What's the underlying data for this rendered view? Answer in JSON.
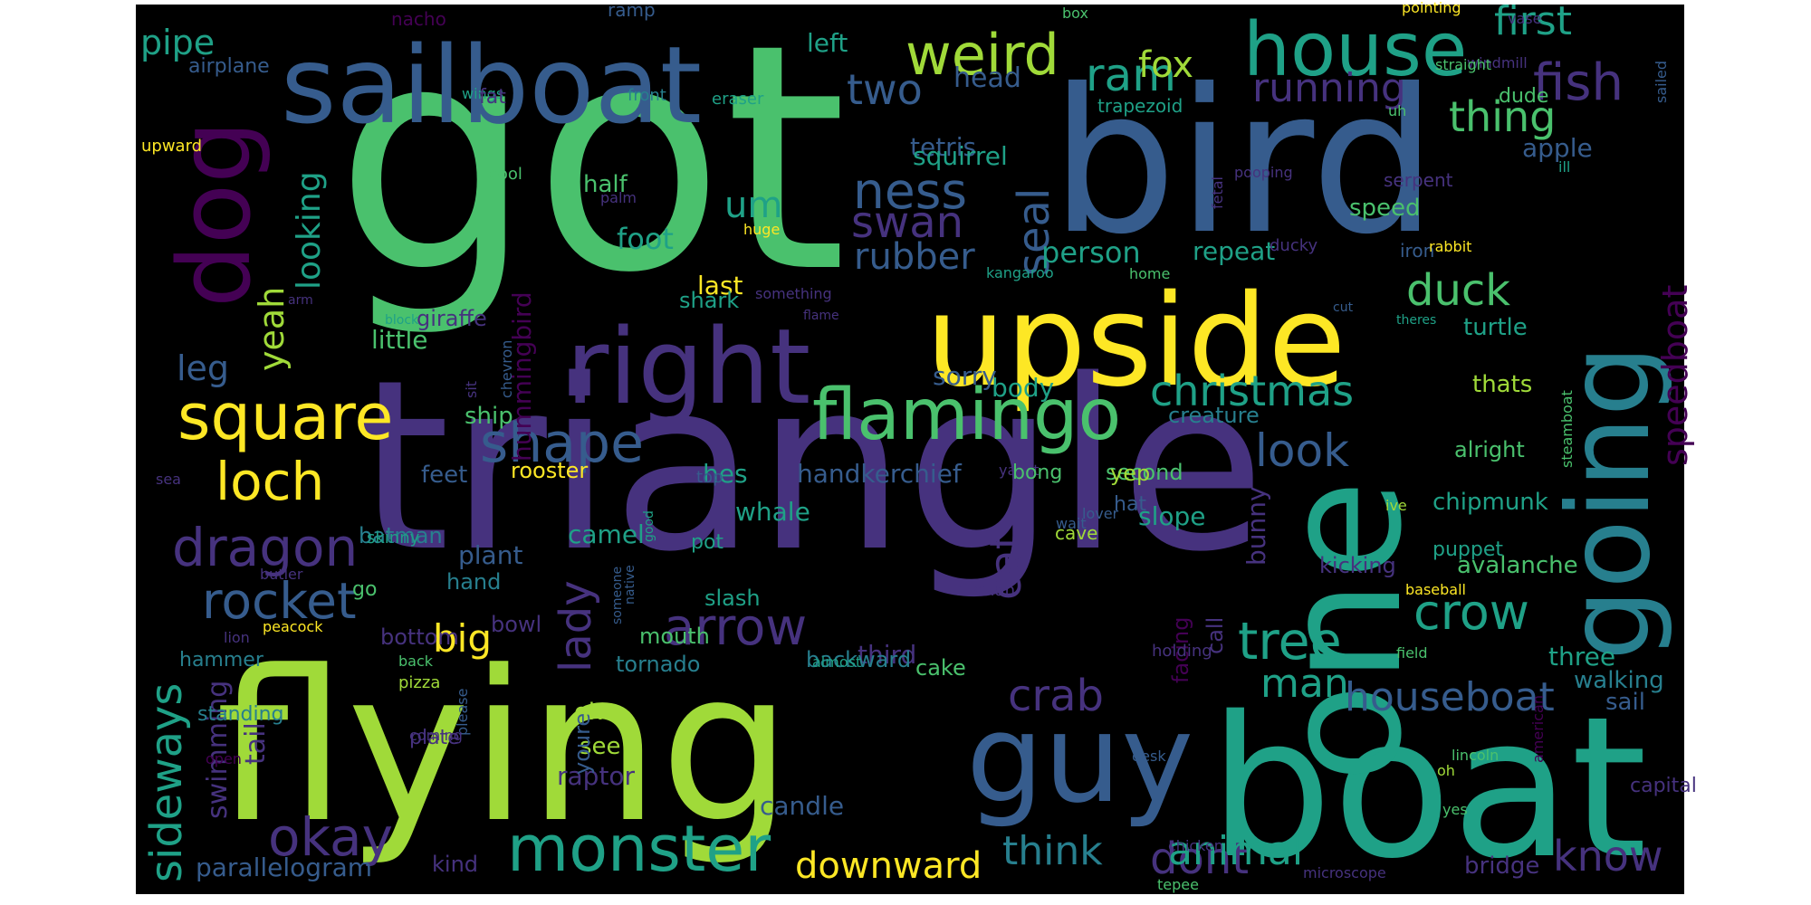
{
  "background": "#000000",
  "palette": {
    "yellow": "#fde725",
    "lime": "#a0da39",
    "green": "#4ac16d",
    "teal": "#1fa187",
    "cyan": "#277f8e",
    "blue": "#365c8d",
    "indigo": "#46327e",
    "purple": "#440154"
  },
  "words": [
    {
      "text": "got",
      "color": "green"
    },
    {
      "text": "triangle",
      "color": "indigo"
    },
    {
      "text": "flying",
      "color": "lime"
    },
    {
      "text": "bird",
      "color": "blue"
    },
    {
      "text": "boat",
      "color": "teal"
    },
    {
      "text": "one",
      "color": "teal"
    },
    {
      "text": "upside",
      "color": "yellow"
    },
    {
      "text": "guy",
      "color": "blue"
    },
    {
      "text": "going",
      "color": "cyan"
    },
    {
      "text": "sailboat",
      "color": "blue"
    },
    {
      "text": "right",
      "color": "indigo"
    },
    {
      "text": "dog",
      "color": "purple"
    },
    {
      "text": "house",
      "color": "teal"
    },
    {
      "text": "flamingo",
      "color": "green"
    },
    {
      "text": "monster",
      "color": "teal"
    },
    {
      "text": "square",
      "color": "yellow"
    },
    {
      "text": "shape",
      "color": "blue"
    },
    {
      "text": "weird",
      "color": "lime"
    },
    {
      "text": "dragon",
      "color": "indigo"
    },
    {
      "text": "okay",
      "color": "indigo"
    },
    {
      "text": "arrow",
      "color": "indigo"
    },
    {
      "text": "loch",
      "color": "yellow"
    },
    {
      "text": "rocket",
      "color": "blue"
    },
    {
      "text": "tree",
      "color": "teal"
    },
    {
      "text": "crow",
      "color": "teal"
    },
    {
      "text": "ness",
      "color": "blue"
    },
    {
      "text": "seal",
      "color": "blue"
    },
    {
      "text": "fish",
      "color": "indigo"
    },
    {
      "text": "ram",
      "color": "teal"
    },
    {
      "text": "duck",
      "color": "green"
    },
    {
      "text": "christmas",
      "color": "teal"
    },
    {
      "text": "look",
      "color": "blue"
    },
    {
      "text": "houseboat",
      "color": "blue"
    },
    {
      "text": "crab",
      "color": "indigo"
    },
    {
      "text": "man",
      "color": "teal"
    },
    {
      "text": "dont",
      "color": "indigo"
    },
    {
      "text": "know",
      "color": "indigo"
    },
    {
      "text": "think",
      "color": "cyan"
    },
    {
      "text": "animal",
      "color": "teal"
    },
    {
      "text": "downward",
      "color": "yellow"
    },
    {
      "text": "two",
      "color": "blue"
    },
    {
      "text": "running",
      "color": "indigo"
    },
    {
      "text": "swan",
      "color": "indigo"
    },
    {
      "text": "thing",
      "color": "green"
    },
    {
      "text": "first",
      "color": "teal"
    },
    {
      "text": "fox",
      "color": "lime"
    },
    {
      "text": "pipe",
      "color": "teal"
    },
    {
      "text": "sideways",
      "color": "teal"
    },
    {
      "text": "cat",
      "color": "indigo"
    },
    {
      "text": "lady",
      "color": "indigo"
    },
    {
      "text": "big",
      "color": "yellow"
    },
    {
      "text": "speedboat",
      "color": "purple"
    },
    {
      "text": "rubber",
      "color": "blue"
    },
    {
      "text": "looking",
      "color": "teal"
    },
    {
      "text": "yeah",
      "color": "lime"
    },
    {
      "text": "leg",
      "color": "blue"
    },
    {
      "text": "um",
      "color": "teal"
    },
    {
      "text": "hummingbird",
      "color": "purple"
    },
    {
      "text": "foot",
      "color": "teal"
    },
    {
      "text": "person",
      "color": "teal"
    },
    {
      "text": "repeat",
      "color": "teal"
    },
    {
      "text": "apple",
      "color": "blue"
    },
    {
      "text": "speed",
      "color": "green"
    },
    {
      "text": "handkerchief",
      "color": "blue"
    },
    {
      "text": "swimming",
      "color": "indigo"
    },
    {
      "text": "tail",
      "color": "indigo"
    },
    {
      "text": "parallelogram",
      "color": "blue"
    },
    {
      "text": "raptor",
      "color": "indigo"
    },
    {
      "text": "candle",
      "color": "blue"
    },
    {
      "text": "head",
      "color": "blue"
    },
    {
      "text": "left",
      "color": "teal"
    },
    {
      "text": "tetris",
      "color": "blue"
    },
    {
      "text": "squirrel",
      "color": "teal"
    },
    {
      "text": "half",
      "color": "green"
    },
    {
      "text": "last",
      "color": "yellow"
    },
    {
      "text": "little",
      "color": "green"
    },
    {
      "text": "sorry",
      "color": "blue"
    },
    {
      "text": "body",
      "color": "teal"
    },
    {
      "text": "ship",
      "color": "green"
    },
    {
      "text": "third",
      "color": "indigo"
    },
    {
      "text": "three",
      "color": "teal"
    },
    {
      "text": "bunny",
      "color": "indigo"
    },
    {
      "text": "camel",
      "color": "teal"
    },
    {
      "text": "plant",
      "color": "blue"
    },
    {
      "text": "slope",
      "color": "teal"
    },
    {
      "text": "second",
      "color": "green"
    },
    {
      "text": "whale",
      "color": "teal"
    },
    {
      "text": "hes",
      "color": "teal"
    },
    {
      "text": "feet",
      "color": "blue"
    },
    {
      "text": "rooster",
      "color": "yellow"
    },
    {
      "text": "chipmunk",
      "color": "teal"
    },
    {
      "text": "turtle",
      "color": "teal"
    },
    {
      "text": "thats",
      "color": "lime"
    },
    {
      "text": "alright",
      "color": "green"
    },
    {
      "text": "facing",
      "color": "purple"
    },
    {
      "text": "walking",
      "color": "cyan"
    },
    {
      "text": "sail",
      "color": "blue"
    },
    {
      "text": "bridge",
      "color": "indigo"
    },
    {
      "text": "avalanche",
      "color": "green"
    },
    {
      "text": "kicking",
      "color": "indigo"
    },
    {
      "text": "creature",
      "color": "cyan"
    },
    {
      "text": "giraffe",
      "color": "indigo"
    },
    {
      "text": "shark",
      "color": "teal"
    },
    {
      "text": "ok",
      "color": "lime"
    },
    {
      "text": "see",
      "color": "lime"
    },
    {
      "text": "batman",
      "color": "cyan"
    },
    {
      "text": "bottom",
      "color": "indigo"
    },
    {
      "text": "hammer",
      "color": "cyan"
    },
    {
      "text": "standing",
      "color": "cyan"
    },
    {
      "text": "hand",
      "color": "cyan"
    },
    {
      "text": "cake",
      "color": "green"
    },
    {
      "text": "kind",
      "color": "indigo"
    },
    {
      "text": "backward",
      "color": "cyan"
    },
    {
      "text": "tornado",
      "color": "cyan"
    },
    {
      "text": "mouth",
      "color": "green"
    },
    {
      "text": "slash",
      "color": "teal"
    },
    {
      "text": "bowl",
      "color": "indigo"
    },
    {
      "text": "cool",
      "color": "green"
    },
    {
      "text": "hat",
      "color": "blue"
    },
    {
      "text": "pot",
      "color": "teal"
    },
    {
      "text": "yep",
      "color": "lime"
    },
    {
      "text": "call",
      "color": "indigo"
    },
    {
      "text": "holding",
      "color": "indigo"
    },
    {
      "text": "youre",
      "color": "blue"
    },
    {
      "text": "please",
      "color": "blue"
    },
    {
      "text": "plate",
      "color": "indigo"
    },
    {
      "text": "pizza",
      "color": "lime"
    },
    {
      "text": "back",
      "color": "green"
    },
    {
      "text": "coming",
      "color": "indigo"
    },
    {
      "text": "peacock",
      "color": "yellow"
    },
    {
      "text": "lion",
      "color": "indigo"
    },
    {
      "text": "butler",
      "color": "indigo"
    },
    {
      "text": "sea",
      "color": "indigo"
    },
    {
      "text": "chevron",
      "color": "blue"
    },
    {
      "text": "go",
      "color": "green"
    },
    {
      "text": "skinny",
      "color": "teal"
    },
    {
      "text": "russian",
      "color": "indigo"
    },
    {
      "text": "top",
      "color": "blue"
    },
    {
      "text": "yacht",
      "color": "indigo"
    },
    {
      "text": "bong",
      "color": "green"
    },
    {
      "text": "wait",
      "color": "blue"
    },
    {
      "text": "cave",
      "color": "lime"
    },
    {
      "text": "lover",
      "color": "blue"
    },
    {
      "text": "steamboat",
      "color": "green"
    },
    {
      "text": "ive",
      "color": "lime"
    },
    {
      "text": "puppet",
      "color": "teal"
    },
    {
      "text": "baseball",
      "color": "yellow"
    },
    {
      "text": "field",
      "color": "green"
    },
    {
      "text": "american",
      "color": "purple"
    },
    {
      "text": "capital",
      "color": "indigo"
    },
    {
      "text": "lincoln",
      "color": "green"
    },
    {
      "text": "oh",
      "color": "lime"
    },
    {
      "text": "yes",
      "color": "green"
    },
    {
      "text": "chicken",
      "color": "indigo"
    },
    {
      "text": "tepee",
      "color": "green"
    },
    {
      "text": "microscope",
      "color": "indigo"
    },
    {
      "text": "desk",
      "color": "blue"
    },
    {
      "text": "almost",
      "color": "teal"
    },
    {
      "text": "someone",
      "color": "blue"
    },
    {
      "text": "native",
      "color": "blue"
    },
    {
      "text": "good",
      "color": "teal"
    },
    {
      "text": "open",
      "color": "purple"
    },
    {
      "text": "nacho",
      "color": "purple"
    },
    {
      "text": "ramp",
      "color": "blue"
    },
    {
      "text": "box",
      "color": "green"
    },
    {
      "text": "pointing",
      "color": "yellow"
    },
    {
      "text": "vase",
      "color": "indigo"
    },
    {
      "text": "airplane",
      "color": "blue"
    },
    {
      "text": "wings",
      "color": "teal"
    },
    {
      "text": "front",
      "color": "cyan"
    },
    {
      "text": "fat",
      "color": "indigo"
    },
    {
      "text": "eraser",
      "color": "teal"
    },
    {
      "text": "trapezoid",
      "color": "teal"
    },
    {
      "text": "windmill",
      "color": "indigo"
    },
    {
      "text": "dude",
      "color": "green"
    },
    {
      "text": "straight",
      "color": "green"
    },
    {
      "text": "sailed",
      "color": "blue"
    },
    {
      "text": "uh",
      "color": "green"
    },
    {
      "text": "upward",
      "color": "yellow"
    },
    {
      "text": "palm",
      "color": "indigo"
    },
    {
      "text": "pooping",
      "color": "indigo"
    },
    {
      "text": "ill",
      "color": "teal"
    },
    {
      "text": "serpent",
      "color": "indigo"
    },
    {
      "text": "fetal",
      "color": "indigo"
    },
    {
      "text": "huge",
      "color": "yellow"
    },
    {
      "text": "ducky",
      "color": "indigo"
    },
    {
      "text": "iron",
      "color": "blue"
    },
    {
      "text": "rabbit",
      "color": "yellow"
    },
    {
      "text": "kangaroo",
      "color": "teal"
    },
    {
      "text": "home",
      "color": "green"
    },
    {
      "text": "something",
      "color": "indigo"
    },
    {
      "text": "arm",
      "color": "indigo"
    },
    {
      "text": "block",
      "color": "teal"
    },
    {
      "text": "flame",
      "color": "indigo"
    },
    {
      "text": "cut",
      "color": "blue"
    },
    {
      "text": "theres",
      "color": "teal"
    },
    {
      "text": "sit",
      "color": "indigo"
    },
    {
      "text": "sales",
      "color": "indigo"
    },
    {
      "text": "im",
      "color": "teal"
    }
  ]
}
